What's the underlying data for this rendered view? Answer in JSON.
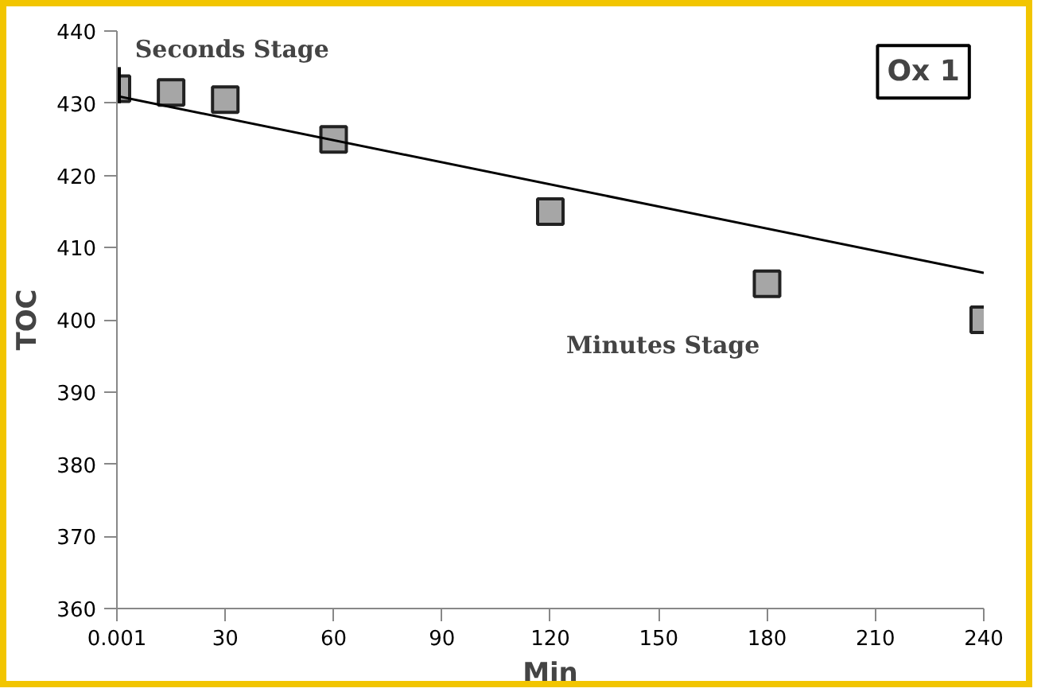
{
  "chart_data": {
    "type": "scatter",
    "xlabel": "Min",
    "ylabel": "TOC",
    "x": [
      0.001,
      15,
      30,
      60,
      120,
      180,
      240
    ],
    "series": [
      {
        "color": "#a6a6a6",
        "marker": "square",
        "values": [
          432,
          431.5,
          430.5,
          425,
          415,
          405,
          400
        ],
        "errors": [
          [
            430,
            435
          ],
          null,
          null,
          null,
          null,
          null,
          null
        ]
      },
      {
        "type": "line",
        "color": "#000000",
        "marker": "none",
        "x": [
          0.001,
          240
        ],
        "values": [
          431,
          406.5
        ]
      }
    ],
    "xlim": [
      0.001,
      240
    ],
    "xticks": [
      0.001,
      30,
      60,
      90,
      120,
      150,
      180,
      210,
      240
    ],
    "ylim": [
      360,
      440
    ],
    "yticks": [
      360,
      370,
      380,
      390,
      400,
      410,
      420,
      430,
      440
    ],
    "annotations": [
      "Seconds Stage",
      "Minutes Stage",
      "Ox 1"
    ],
    "grid": false
  }
}
